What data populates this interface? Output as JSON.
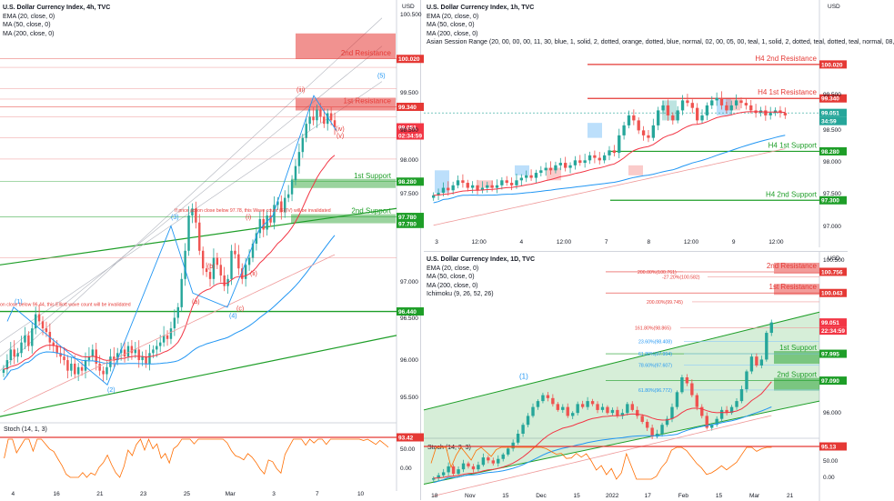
{
  "colors": {
    "green": "#1e9e28",
    "red": "#e53935",
    "ema": "#f23645",
    "ma50": "#2196f3",
    "ma200": "#ef9a9a",
    "candle_up": "#26a69a",
    "candle_down": "#ef5350",
    "price_tag": "#f23645",
    "stoch": "#ff6d00"
  },
  "chart_data": [
    {
      "id": "chart-4h",
      "type": "candlestick",
      "header": [
        "U.S. Dollar Currency Index, 4h, TVC",
        "EMA (20, close, 0)",
        "MA (50, close, 0)",
        "MA (200, close, 0)"
      ],
      "currency": "USD",
      "ylim": [
        94.9,
        100.7
      ],
      "y_ticks": [
        "100.500",
        "99.500",
        "98.500",
        "98.000",
        "97.500",
        "97.000",
        "96.500",
        "96.000",
        "95.500"
      ],
      "x_ticks": [
        "4",
        "16",
        "21",
        "23",
        "25",
        "Mar",
        "3",
        "7",
        "10"
      ],
      "levels": [
        {
          "label": "2nd Resistance",
          "value": 100.02,
          "tag": "100.020",
          "color": "red"
        },
        {
          "label": "1st Resistance",
          "value": 99.34,
          "tag": "99.340",
          "color": "red"
        },
        {
          "label": "1st Support",
          "value": 98.28,
          "tag": "98.280",
          "color": "green"
        },
        {
          "label": "2nd Support",
          "value": 97.78,
          "tag": "97.780",
          "color": "green"
        }
      ],
      "extra_tags": [
        "96.440",
        "97.780"
      ],
      "current_price": "99.051",
      "countdown": "02:34:59",
      "wave_labels": [
        "(1)",
        "(2)",
        "(3)",
        "(4)",
        "(5)",
        "(i)",
        "(ii)",
        "(iii)",
        "(iv)",
        "(v)",
        "(a)",
        "(b)",
        "(c)",
        "(III)"
      ],
      "annotations": [
        "If price action close below 97.78, this Wave count (5)(IV) will be invalidated",
        "on close below 96.44, this Elliott wave count will be invalidated"
      ],
      "indicator": {
        "label": "Stoch (14, 1, 3)",
        "tag": "93.42",
        "ticks": [
          "50.00",
          "0.00"
        ]
      },
      "closes": [
        95.62,
        95.75,
        95.9,
        95.8,
        95.85,
        96.0,
        96.1,
        95.95,
        96.2,
        96.4,
        96.3,
        96.2,
        96.15,
        96.0,
        95.95,
        95.85,
        95.8,
        95.75,
        95.6,
        95.7,
        95.55,
        95.65,
        95.6,
        95.75,
        95.8,
        95.9,
        95.7,
        95.6,
        95.55,
        95.65,
        95.8,
        95.75,
        95.85,
        95.9,
        95.8,
        95.95,
        95.85,
        95.9,
        95.75,
        95.8,
        95.7,
        95.85,
        95.9,
        95.95,
        96.0,
        96.1,
        96.05,
        96.2,
        96.35,
        96.5,
        96.9,
        97.3,
        97.8,
        97.9,
        97.7,
        97.3,
        97.05,
        97.0,
        96.9,
        97.2,
        97.1,
        96.95,
        96.8,
        96.9,
        97.3,
        97.25,
        97.05,
        96.9,
        97.1,
        97.2,
        97.4,
        97.55,
        97.75,
        97.6,
        97.8,
        97.7,
        97.95,
        98.0,
        97.85,
        98.05,
        98.1,
        98.3,
        98.5,
        98.7,
        98.9,
        99.1,
        99.2,
        99.15,
        99.3,
        99.2,
        99.1,
        99.25,
        99.15,
        99.05
      ]
    },
    {
      "id": "chart-1h",
      "type": "candlestick",
      "header": [
        "U.S. Dollar Currency Index, 1h, TVC",
        "EMA (20, close, 0)",
        "MA (50, close, 0)",
        "MA (200, close, 0)",
        "Asian Session Range (20, 00, 00, 00, 11, 30, blue, 1, solid, 2, dotted, orange, dotted, blue, normal, 02, 00, 05, 00, teal, 1, solid, 2, dotted, teal, dotted, teal, normal, 08,"
      ],
      "currency": "USD",
      "ylim": [
        96.85,
        100.4
      ],
      "y_ticks": [
        "99.500",
        "98.500",
        "98.000",
        "97.500",
        "97.000"
      ],
      "x_ticks": [
        "3",
        "12:00",
        "4",
        "12:00",
        "7",
        "8",
        "12:00",
        "9",
        "12:00"
      ],
      "levels": [
        {
          "label": "H4 2nd Resistance",
          "value": 100.02,
          "tag": "100.020",
          "color": "red"
        },
        {
          "label": "H4 1st Resistance",
          "value": 99.34,
          "tag": "99.340",
          "color": "red"
        },
        {
          "label": "H4 1st Support",
          "value": 98.28,
          "tag": "98.280",
          "color": "green"
        },
        {
          "label": "H4 2nd Support",
          "value": 97.3,
          "tag": "97.300",
          "color": "green"
        }
      ],
      "current_price": "99.051",
      "countdown": "34:59",
      "closes": [
        97.4,
        97.45,
        97.55,
        97.5,
        97.6,
        97.7,
        97.65,
        97.55,
        97.6,
        97.5,
        97.55,
        97.6,
        97.55,
        97.6,
        97.7,
        97.65,
        97.6,
        97.7,
        97.75,
        97.8,
        97.75,
        97.85,
        97.9,
        97.95,
        97.9,
        98.0,
        98.05,
        97.95,
        98.0,
        98.1,
        98.05,
        98.1,
        98.2,
        98.15,
        98.1,
        98.2,
        98.3,
        98.25,
        98.6,
        98.8,
        99.0,
        98.9,
        98.7,
        98.6,
        98.55,
        98.8,
        99.1,
        99.2,
        99.0,
        98.9,
        99.1,
        99.3,
        99.25,
        99.15,
        98.9,
        99.0,
        99.2,
        99.3,
        99.35,
        99.2,
        99.1,
        99.2,
        99.3,
        99.25,
        99.2,
        99.1,
        99.05,
        99.1,
        99.0,
        99.05,
        99.1,
        99.05,
        99.0
      ]
    },
    {
      "id": "chart-1d",
      "type": "candlestick",
      "header": [
        "U.S. Dollar Currency Index, 1D, TVC",
        "EMA (20, close, 0)",
        "MA (50, close, 0)",
        "MA (200, close, 0)",
        "Ichimoku (9, 26, 52, 26)"
      ],
      "currency": "USD",
      "ylim": [
        95.3,
        101.0
      ],
      "y_ticks": [
        "100.500",
        "96.000"
      ],
      "x_ticks": [
        "18",
        "Nov",
        "15",
        "Dec",
        "15",
        "2022",
        "17",
        "Feb",
        "15",
        "Mar",
        "21"
      ],
      "levels": [
        {
          "label": "2nd Resistance",
          "value": 100.756,
          "tag": "100.756",
          "color": "red"
        },
        {
          "label": "1st Resistance",
          "value": 100.043,
          "tag": "100.043",
          "color": "red"
        },
        {
          "label": "1st Support",
          "value": 97.995,
          "tag": "97.995",
          "color": "green"
        },
        {
          "label": "2nd Support",
          "value": 97.09,
          "tag": "97.090",
          "color": "green"
        }
      ],
      "fib_labels": [
        "200.00%(100.761)",
        "-27.20%(100.582)",
        "200.00%(99.745)",
        "161.80%(98.865)",
        "23.60%(98.408)",
        "61.80%(97.994)",
        "78.60%(97.607)",
        "61.80%(96.772)"
      ],
      "current_price": "99.051",
      "countdown": "22:34:59",
      "wave_labels": [
        "(1)"
      ],
      "indicator": {
        "label": "Stoch (14, 3, 3)",
        "tag": "95.13",
        "ticks": [
          "50.00",
          "0.00"
        ]
      },
      "closes": [
        93.8,
        93.9,
        94.0,
        94.2,
        93.95,
        94.1,
        94.3,
        94.2,
        94.1,
        94.25,
        94.5,
        94.4,
        94.3,
        94.45,
        94.6,
        94.8,
        95.0,
        95.3,
        95.6,
        95.9,
        96.2,
        96.4,
        96.6,
        96.5,
        96.3,
        96.1,
        96.2,
        95.9,
        96.0,
        96.3,
        96.2,
        96.4,
        96.3,
        96.1,
        96.2,
        96.0,
        96.1,
        95.9,
        96.0,
        96.3,
        96.1,
        95.9,
        95.7,
        95.5,
        95.2,
        95.3,
        95.6,
        95.8,
        96.2,
        96.7,
        97.2,
        97.0,
        96.6,
        96.2,
        95.9,
        95.5,
        95.6,
        95.8,
        96.1,
        96.0,
        96.2,
        96.4,
        96.8,
        97.4,
        97.9,
        97.6,
        97.8,
        98.7,
        99.05
      ]
    }
  ]
}
